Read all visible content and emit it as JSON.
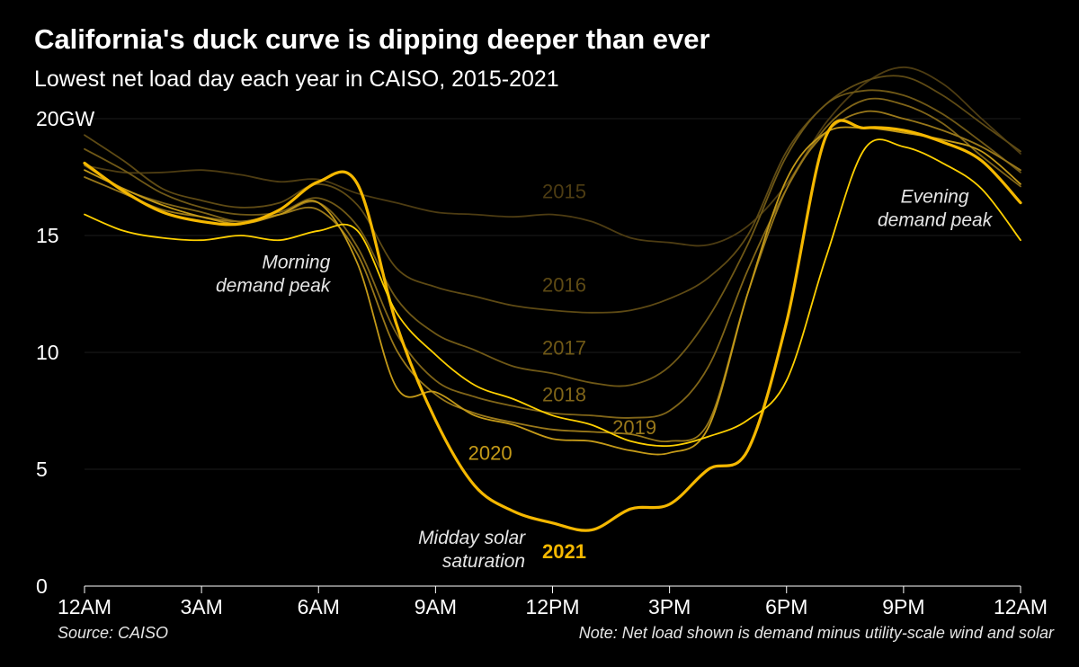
{
  "chart_data": {
    "type": "line",
    "title": "California's duck curve is dipping deeper than ever",
    "subtitle": "Lowest net load day each year in CAISO, 2015-2021",
    "y_unit": "GW",
    "ylim": [
      0,
      20
    ],
    "y_ticks": [
      0,
      5,
      10,
      15,
      20
    ],
    "x_ticks": [
      {
        "hour": 0,
        "label": "12AM"
      },
      {
        "hour": 3,
        "label": "3AM"
      },
      {
        "hour": 6,
        "label": "6AM"
      },
      {
        "hour": 9,
        "label": "9AM"
      },
      {
        "hour": 12,
        "label": "12PM"
      },
      {
        "hour": 15,
        "label": "3PM"
      },
      {
        "hour": 18,
        "label": "6PM"
      },
      {
        "hour": 21,
        "label": "9PM"
      },
      {
        "hour": 24,
        "label": "12AM"
      }
    ],
    "xlim": [
      0,
      24
    ],
    "grid": true,
    "x": [
      0,
      1,
      2,
      3,
      4,
      5,
      6,
      7,
      8,
      9,
      10,
      11,
      12,
      13,
      14,
      15,
      16,
      17,
      18,
      19,
      20,
      21,
      22,
      23,
      24
    ],
    "series": [
      {
        "name": "2015",
        "color": "#4d3c12",
        "label_hour": 12.3,
        "label_value": 16.6,
        "values": [
          18.0,
          17.7,
          17.7,
          17.8,
          17.6,
          17.3,
          17.4,
          16.8,
          16.4,
          16.0,
          15.9,
          15.8,
          15.9,
          15.6,
          14.9,
          14.7,
          14.6,
          15.4,
          17.2,
          19.8,
          21.5,
          22.2,
          21.5,
          20.0,
          18.5
        ]
      },
      {
        "name": "2016",
        "color": "#5e4a14",
        "label_hour": 12.3,
        "label_value": 12.6,
        "values": [
          19.3,
          18.2,
          17.0,
          16.5,
          16.2,
          16.4,
          17.2,
          16.3,
          13.6,
          12.8,
          12.4,
          12.0,
          11.8,
          11.7,
          11.8,
          12.3,
          13.2,
          15.0,
          18.6,
          20.6,
          21.6,
          21.8,
          21.0,
          19.8,
          18.6
        ]
      },
      {
        "name": "2017",
        "color": "#6f5816",
        "label_hour": 12.3,
        "label_value": 9.9,
        "values": [
          18.7,
          17.8,
          16.8,
          16.2,
          15.9,
          16.0,
          16.6,
          15.4,
          12.3,
          10.8,
          10.1,
          9.4,
          9.1,
          8.7,
          8.6,
          9.4,
          11.5,
          14.6,
          18.4,
          20.6,
          21.2,
          21.0,
          20.2,
          19.0,
          17.7
        ]
      },
      {
        "name": "2018",
        "color": "#806518",
        "label_hour": 12.3,
        "label_value": 7.9,
        "values": [
          18.0,
          17.0,
          16.4,
          16.0,
          15.6,
          15.9,
          16.4,
          14.5,
          10.8,
          8.8,
          8.1,
          7.7,
          7.4,
          7.3,
          7.2,
          7.5,
          9.4,
          13.5,
          17.0,
          19.6,
          20.8,
          20.6,
          19.8,
          18.4,
          17.1
        ]
      },
      {
        "name": "2019",
        "color": "#99781a",
        "label_hour": 14.1,
        "label_value": 6.5,
        "values": [
          17.5,
          16.8,
          16.1,
          15.8,
          15.6,
          15.9,
          16.1,
          14.2,
          10.1,
          8.2,
          7.4,
          7.0,
          6.7,
          6.6,
          6.5,
          6.2,
          7.0,
          12.5,
          17.0,
          19.4,
          20.3,
          20.0,
          19.5,
          18.8,
          17.8
        ]
      },
      {
        "name": "2020",
        "color": "#c49a18",
        "label_hour": 10.4,
        "label_value": 5.4,
        "values": [
          17.8,
          17.0,
          16.3,
          15.8,
          15.5,
          15.9,
          16.4,
          13.8,
          8.5,
          8.3,
          7.3,
          6.9,
          6.3,
          6.2,
          5.8,
          5.7,
          6.8,
          12.5,
          17.4,
          19.4,
          19.6,
          19.4,
          19.1,
          18.6,
          17.2
        ]
      },
      {
        "name": "2021",
        "color": "#f5b800",
        "label_hour": 12.3,
        "label_value": 1.2,
        "bold": true,
        "values": [
          18.1,
          16.9,
          16.0,
          15.6,
          15.5,
          16.1,
          17.3,
          17.2,
          11.2,
          7.1,
          4.3,
          3.2,
          2.7,
          2.4,
          3.3,
          3.5,
          5.0,
          5.8,
          11.3,
          19.2,
          19.6,
          19.5,
          19.0,
          18.2,
          16.4
        ]
      },
      {
        "name": "",
        "color": "#ffd000",
        "values": [
          15.9,
          15.2,
          14.9,
          14.8,
          15.0,
          14.8,
          15.2,
          15.2,
          11.7,
          9.9,
          8.6,
          8.0,
          7.3,
          6.9,
          6.2,
          6.0,
          6.4,
          7.1,
          8.8,
          14.0,
          18.7,
          18.8,
          18.1,
          17.0,
          14.8
        ]
      }
    ],
    "annotations": [
      {
        "lines": [
          "Morning",
          "demand peak"
        ],
        "hour": 6.3,
        "value": 13.6,
        "anchor": "end"
      },
      {
        "lines": [
          "Evening",
          "demand peak"
        ],
        "hour": 21.8,
        "value": 16.4,
        "anchor": "middle"
      },
      {
        "lines": [
          "Midday solar",
          "saturation"
        ],
        "hour": 11.3,
        "value": 1.8,
        "anchor": "end"
      }
    ]
  },
  "footer": {
    "source": "Source: CAISO",
    "note": "Note: Net load shown is demand minus utility-scale wind and solar"
  }
}
